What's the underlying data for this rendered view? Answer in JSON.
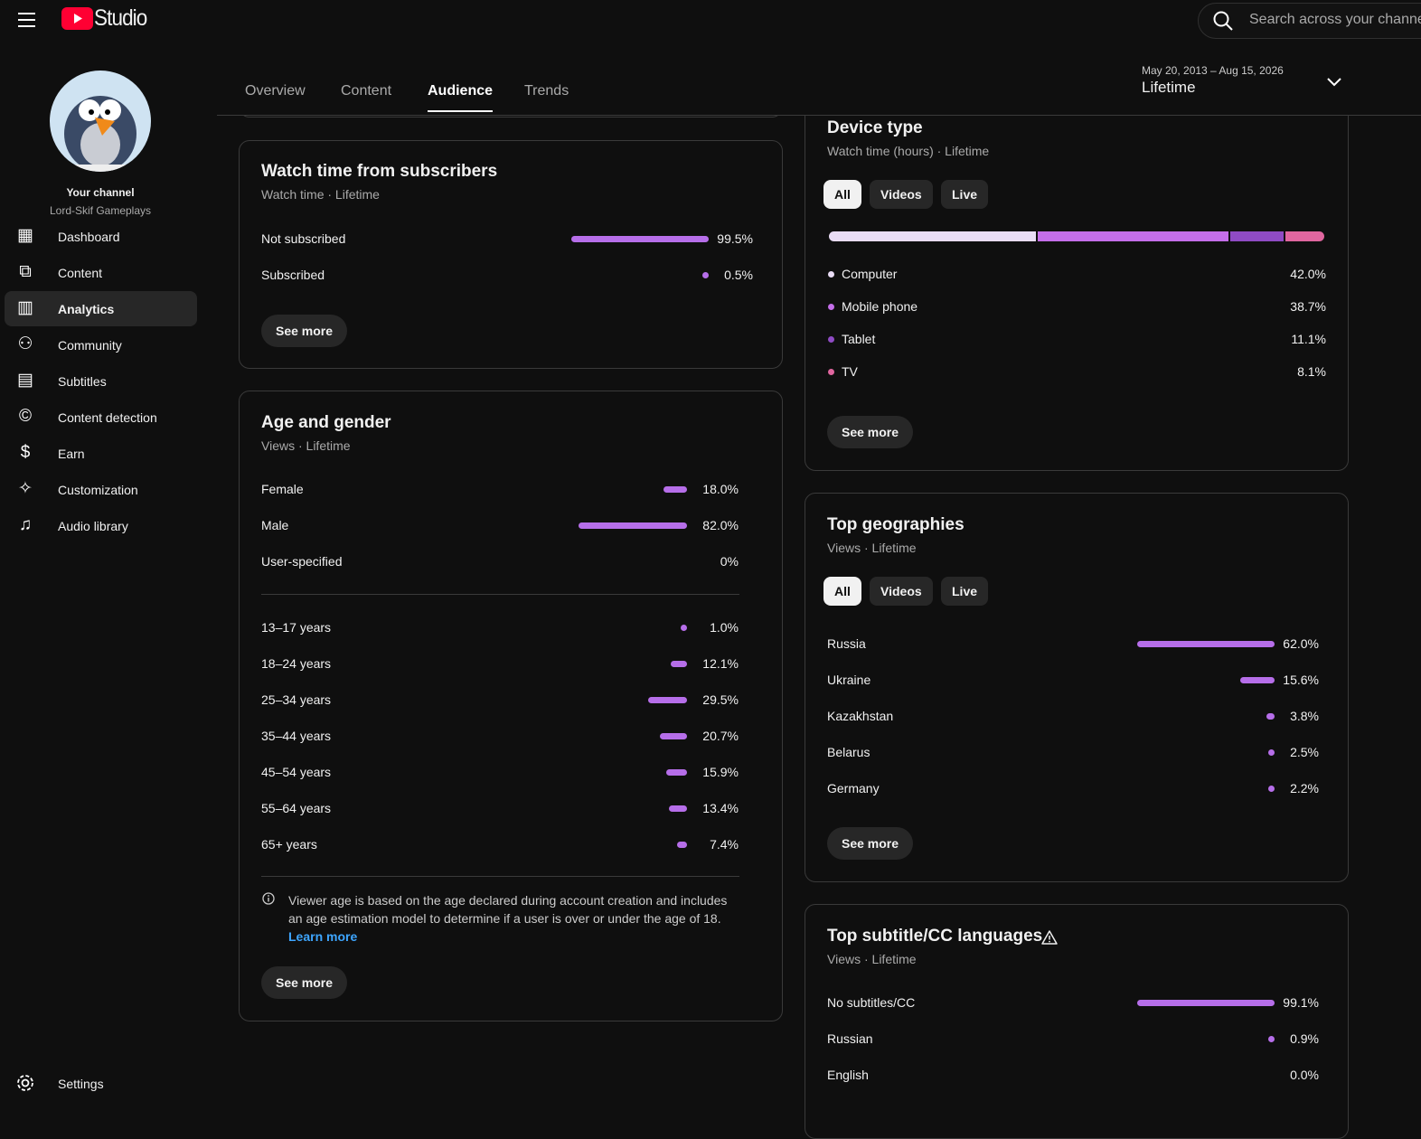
{
  "header": {
    "logo": "Studio",
    "search": "Search across your channel"
  },
  "sidebar": {
    "channel_label": "Your channel",
    "channel_name": "Lord-Skif Gameplays",
    "nav": [
      "Dashboard",
      "Content",
      "Analytics",
      "Community",
      "Subtitles",
      "Content detection",
      "Earn",
      "Customization",
      "Audio library"
    ],
    "settings": "Settings"
  },
  "tabs": [
    "Overview",
    "Content",
    "Audience",
    "Trends"
  ],
  "date_range": {
    "dates": "May 20, 2013 – Aug 15, 2026",
    "period": "Lifetime"
  },
  "watch_time_subscribers": {
    "title": "Watch time from subscribers",
    "subtitle": "Watch time · Lifetime",
    "rows": [
      {
        "name": "Not subscribed",
        "value": 99.5,
        "label": "99.5%"
      },
      {
        "name": "Subscribed",
        "value": 0.5,
        "label": "0.5%"
      }
    ],
    "button": "See more"
  },
  "age_gender": {
    "title": "Age and gender",
    "subtitle": "Views · Lifetime",
    "gender": [
      {
        "name": "Female",
        "value": 18.0,
        "label": "18.0%"
      },
      {
        "name": "Male",
        "value": 82.0,
        "label": "82.0%"
      },
      {
        "name": "User-specified",
        "value": 0,
        "label": "0%"
      }
    ],
    "age": [
      {
        "name": "13–17 years",
        "value": 1.0,
        "label": "1.0%"
      },
      {
        "name": "18–24 years",
        "value": 12.1,
        "label": "12.1%"
      },
      {
        "name": "25–34 years",
        "value": 29.5,
        "label": "29.5%"
      },
      {
        "name": "35–44 years",
        "value": 20.7,
        "label": "20.7%"
      },
      {
        "name": "45–54 years",
        "value": 15.9,
        "label": "15.9%"
      },
      {
        "name": "55–64 years",
        "value": 13.4,
        "label": "13.4%"
      },
      {
        "name": "65+ years",
        "value": 7.4,
        "label": "7.4%"
      }
    ],
    "note": "Viewer age is based on the age declared during account creation and includes an age estimation model to determine if a user is over or under the age of 18.",
    "link": "Learn more",
    "button": "See more"
  },
  "device_type": {
    "title": "Device type",
    "subtitle": "Watch time (hours) · Lifetime",
    "filters": [
      "All",
      "Videos",
      "Live"
    ],
    "rows": [
      {
        "name": "Computer",
        "value": 42.0,
        "label": "42.0%",
        "color": "#e9dcf5"
      },
      {
        "name": "Mobile phone",
        "value": 38.7,
        "label": "38.7%",
        "color": "#c46ee9"
      },
      {
        "name": "Tablet",
        "value": 11.1,
        "label": "11.1%",
        "color": "#8f4bc4"
      },
      {
        "name": "TV",
        "value": 8.1,
        "label": "8.1%",
        "color": "#e0669f"
      }
    ],
    "button": "See more"
  },
  "top_geographies": {
    "title": "Top geographies",
    "subtitle": "Views · Lifetime",
    "filters": [
      "All",
      "Videos",
      "Live"
    ],
    "rows": [
      {
        "name": "Russia",
        "value": 62.0,
        "label": "62.0%"
      },
      {
        "name": "Ukraine",
        "value": 15.6,
        "label": "15.6%"
      },
      {
        "name": "Kazakhstan",
        "value": 3.8,
        "label": "3.8%"
      },
      {
        "name": "Belarus",
        "value": 2.5,
        "label": "2.5%"
      },
      {
        "name": "Germany",
        "value": 2.2,
        "label": "2.2%"
      }
    ],
    "button": "See more"
  },
  "top_subtitle_languages": {
    "title": "Top subtitle/CC languages",
    "subtitle": "Views · Lifetime",
    "rows": [
      {
        "name": "No subtitles/CC",
        "value": 99.1,
        "label": "99.1%"
      },
      {
        "name": "Russian",
        "value": 0.9,
        "label": "0.9%"
      },
      {
        "name": "English",
        "value": 0.0,
        "label": "0.0%"
      }
    ]
  }
}
